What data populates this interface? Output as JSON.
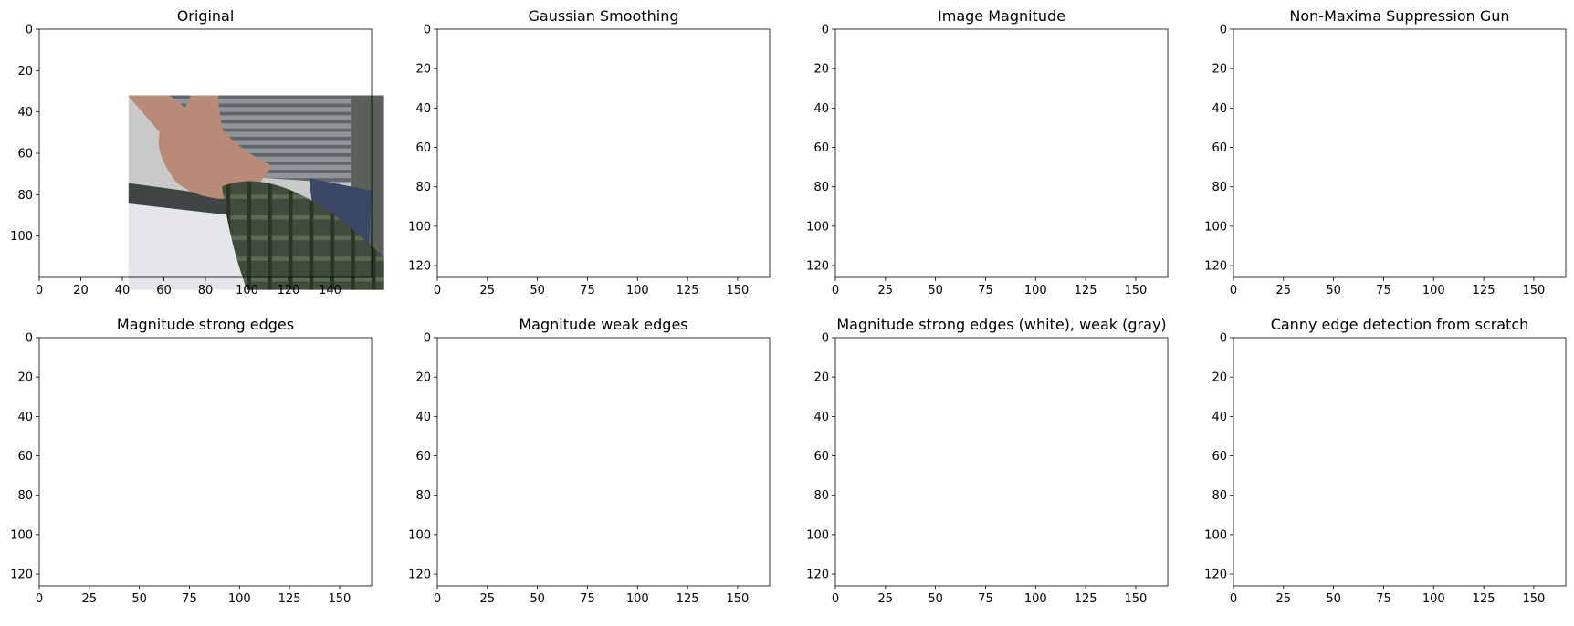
{
  "panels": [
    {
      "title": "Original",
      "mode": "photo",
      "x_ticks": [
        0,
        20,
        40,
        60,
        80,
        100,
        120,
        140
      ],
      "y_ticks": [
        0,
        20,
        40,
        60,
        80,
        100
      ],
      "x_max": 160,
      "y_max": 120
    },
    {
      "title": "Gaussian Smoothing",
      "mode": "blur",
      "x_ticks": [
        0,
        25,
        50,
        75,
        100,
        125,
        150
      ],
      "y_ticks": [
        0,
        20,
        40,
        60,
        80,
        100,
        120
      ],
      "x_max": 166,
      "y_max": 126
    },
    {
      "title": "Image Magnitude",
      "mode": "magnitude",
      "x_ticks": [
        0,
        25,
        50,
        75,
        100,
        125,
        150
      ],
      "y_ticks": [
        0,
        20,
        40,
        60,
        80,
        100,
        120
      ],
      "x_max": 166,
      "y_max": 126
    },
    {
      "title": "Non-Maxima Suppression Gun",
      "mode": "nms",
      "x_ticks": [
        0,
        25,
        50,
        75,
        100,
        125,
        150
      ],
      "y_ticks": [
        0,
        20,
        40,
        60,
        80,
        100,
        120
      ],
      "x_max": 166,
      "y_max": 126
    },
    {
      "title": "Magnitude strong edges",
      "mode": "strong",
      "x_ticks": [
        0,
        25,
        50,
        75,
        100,
        125,
        150
      ],
      "y_ticks": [
        0,
        20,
        40,
        60,
        80,
        100,
        120
      ],
      "x_max": 166,
      "y_max": 126
    },
    {
      "title": "Magnitude weak edges",
      "mode": "weak",
      "x_ticks": [
        0,
        25,
        50,
        75,
        100,
        125,
        150
      ],
      "y_ticks": [
        0,
        20,
        40,
        60,
        80,
        100,
        120
      ],
      "x_max": 166,
      "y_max": 126
    },
    {
      "title": "Magnitude strong edges (white), weak (gray)",
      "mode": "both",
      "x_ticks": [
        0,
        25,
        50,
        75,
        100,
        125,
        150
      ],
      "y_ticks": [
        0,
        20,
        40,
        60,
        80,
        100,
        120
      ],
      "x_max": 166,
      "y_max": 126
    },
    {
      "title": "Canny edge detection from scratch",
      "mode": "canny",
      "x_ticks": [
        0,
        25,
        50,
        75,
        100,
        125,
        150
      ],
      "y_ticks": [
        0,
        20,
        40,
        60,
        80,
        100,
        120
      ],
      "x_max": 166,
      "y_max": 126
    }
  ],
  "colors": {
    "edge_background": "#000000",
    "strong_edge": "#ffffff",
    "weak_edge": "#7a7a7a",
    "wall": "#c9c9c9",
    "blind": "#8c9196",
    "skin": "#b98a76",
    "sleeve": "#3e4a3a",
    "monitor": "#3a4866"
  }
}
